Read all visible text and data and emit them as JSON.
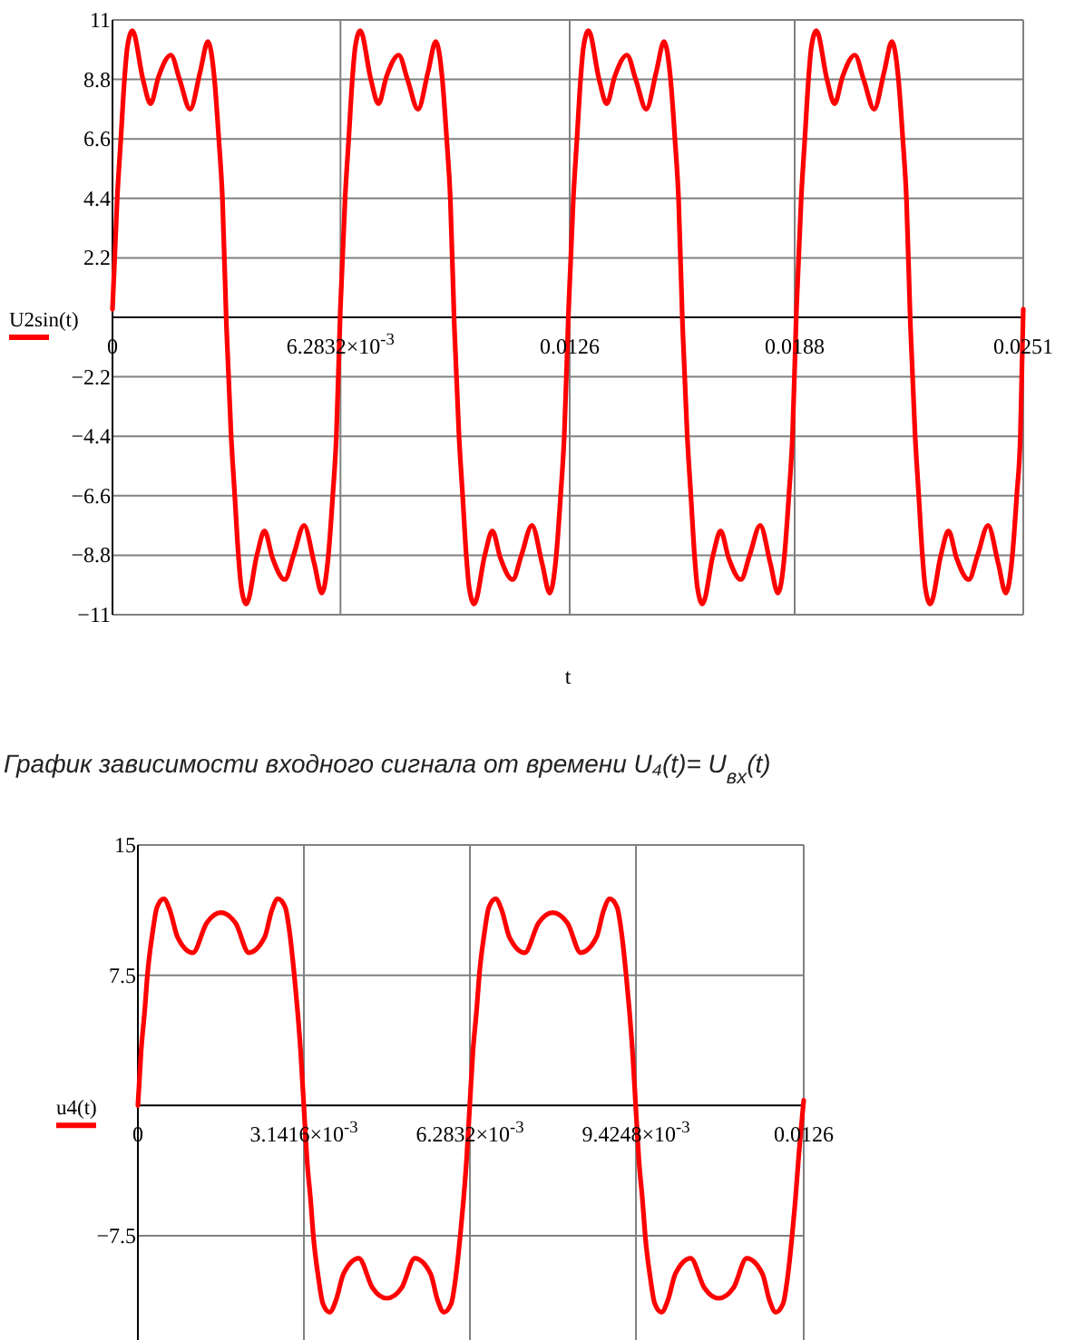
{
  "chart_data": [
    {
      "type": "line",
      "xlabel": "t",
      "grid": true,
      "legend": "left",
      "line_style": "solid",
      "xlim": [
        0,
        0.0251
      ],
      "ylim": [
        -11,
        11
      ],
      "xticks": [
        0,
        {
          "value": 0.0062832,
          "label": "6.2832×10$^{-3}$"
        },
        0.0126,
        0.0188,
        0.0251
      ],
      "yticks": [
        11,
        8.8,
        6.6,
        4.4,
        2.2,
        -2.2,
        -4.4,
        -6.6,
        -8.8,
        -11
      ],
      "x": [
        0,
        0.00013,
        0.00023,
        0.00033,
        0.00041,
        0.00055,
        0.00084,
        0.00105,
        0.00127,
        0.00161,
        0.00185,
        0.00214,
        0.00242,
        0.00263,
        0.00281,
        0.00293,
        0.00303,
        0.00314,
        0.00327,
        0.00337,
        0.00347,
        0.00355,
        0.00369,
        0.00398,
        0.00419,
        0.00441,
        0.00475,
        0.00499,
        0.00528,
        0.00556,
        0.00577,
        0.00595,
        0.00607,
        0.00617,
        0.00628,
        0.00641,
        0.00651,
        0.00661,
        0.00669,
        0.00683,
        0.00712,
        0.00733,
        0.00755,
        0.00789,
        0.00813,
        0.00842,
        0.0087,
        0.00891,
        0.00909,
        0.00921,
        0.00931,
        0.00942,
        0.00955,
        0.00965,
        0.00975,
        0.00983,
        0.00997,
        0.01026,
        0.01047,
        0.01069,
        0.01103,
        0.01127,
        0.01156,
        0.01184,
        0.01205,
        0.01223,
        0.01235,
        0.01245,
        0.01257,
        0.0127,
        0.0128,
        0.0129,
        0.01298,
        0.01312,
        0.01341,
        0.01362,
        0.01384,
        0.01418,
        0.01442,
        0.01471,
        0.01499,
        0.0152,
        0.01538,
        0.0155,
        0.0156,
        0.01571,
        0.01584,
        0.01594,
        0.01604,
        0.01612,
        0.01626,
        0.01655,
        0.01676,
        0.01698,
        0.01732,
        0.01756,
        0.01785,
        0.01813,
        0.01834,
        0.01852,
        0.01864,
        0.01874,
        0.01885,
        0.01898,
        0.01908,
        0.01918,
        0.01926,
        0.0194,
        0.01969,
        0.0199,
        0.02012,
        0.02046,
        0.0207,
        0.02099,
        0.02127,
        0.02148,
        0.02166,
        0.02178,
        0.02188,
        0.02199,
        0.02212,
        0.02222,
        0.02232,
        0.0224,
        0.02254,
        0.02283,
        0.02304,
        0.02326,
        0.0236,
        0.02384,
        0.02413,
        0.02441,
        0.02462,
        0.0248,
        0.02492,
        0.02502,
        0.0251
      ],
      "series": [
        {
          "name": "U2sin(t)",
          "color": "#ff0000",
          "values": [
            0.3,
            4.4,
            6.6,
            8.8,
            10,
            10.6,
            8.8,
            7.9,
            8.9,
            9.7,
            8.8,
            7.7,
            9.1,
            10.2,
            8.8,
            6.6,
            4.4,
            -0.3,
            -4.4,
            -6.6,
            -8.8,
            -10,
            -10.6,
            -8.8,
            -7.9,
            -8.9,
            -9.7,
            -8.8,
            -7.7,
            -9.1,
            -10.2,
            -8.8,
            -6.6,
            -4.4,
            0.3,
            4.4,
            6.6,
            8.8,
            10,
            10.6,
            8.8,
            7.9,
            8.9,
            9.7,
            8.8,
            7.7,
            9.1,
            10.2,
            8.8,
            6.6,
            4.4,
            -0.3,
            -4.4,
            -6.6,
            -8.8,
            -10,
            -10.6,
            -8.8,
            -7.9,
            -8.9,
            -9.7,
            -8.8,
            -7.7,
            -9.1,
            -10.2,
            -8.8,
            -6.6,
            -4.4,
            0.3,
            4.4,
            6.6,
            8.8,
            10,
            10.6,
            8.8,
            7.9,
            8.9,
            9.7,
            8.8,
            7.7,
            9.1,
            10.2,
            8.8,
            6.6,
            4.4,
            -0.3,
            -4.4,
            -6.6,
            -8.8,
            -10,
            -10.6,
            -8.8,
            -7.9,
            -8.9,
            -9.7,
            -8.8,
            -7.7,
            -9.1,
            -10.2,
            -8.8,
            -6.6,
            -4.4,
            0.3,
            4.4,
            6.6,
            8.8,
            10,
            10.6,
            8.8,
            7.9,
            8.9,
            9.7,
            8.8,
            7.7,
            9.1,
            10.2,
            8.8,
            6.6,
            4.4,
            -0.3,
            -4.4,
            -6.6,
            -8.8,
            -10,
            -10.6,
            -8.8,
            -7.9,
            -8.9,
            -9.7,
            -8.8,
            -7.7,
            -9.1,
            -10.2,
            -8.8,
            -6.6,
            -4.4,
            0.3
          ]
        }
      ]
    },
    {
      "type": "line",
      "title": "График зависимости входного сигнала от времени U₄(t)= U$_{вх}$(t)",
      "grid": true,
      "legend": "left",
      "line_style": "solid",
      "xlim": [
        0,
        0.0126
      ],
      "ylim": [
        -13.5,
        15
      ],
      "xticks": [
        0,
        {
          "value": 0.0031416,
          "label": "3.1416×10$^{-3}$"
        },
        {
          "value": 0.0062832,
          "label": "6.2832×10$^{-3}$"
        },
        {
          "value": 0.0094248,
          "label": "9.4248×10$^{-3}$"
        },
        0.0126
      ],
      "yticks": [
        15,
        7.5,
        -7.5
      ],
      "x": [
        0,
        6e-05,
        0.00013,
        0.00018,
        0.00028,
        0.00036,
        0.00049,
        0.00061,
        0.00075,
        0.00104,
        0.0013,
        0.00157,
        0.00185,
        0.0021,
        0.0024,
        0.00253,
        0.00265,
        0.00279,
        0.00287,
        0.00296,
        0.00302,
        0.00308,
        0.00314,
        0.0032,
        0.00327,
        0.00332,
        0.00342,
        0.0035,
        0.00363,
        0.00375,
        0.00389,
        0.00418,
        0.00444,
        0.00471,
        0.00499,
        0.00524,
        0.00554,
        0.00567,
        0.00579,
        0.00593,
        0.00601,
        0.0061,
        0.00616,
        0.00622,
        0.00628,
        0.00634,
        0.00641,
        0.00646,
        0.00656,
        0.00664,
        0.00677,
        0.00689,
        0.00703,
        0.00732,
        0.00758,
        0.00785,
        0.00813,
        0.00838,
        0.00868,
        0.00881,
        0.00893,
        0.00907,
        0.00915,
        0.00924,
        0.0093,
        0.00936,
        0.00942,
        0.00948,
        0.00955,
        0.0096,
        0.0097,
        0.00978,
        0.00991,
        0.01003,
        0.01017,
        0.01046,
        0.01072,
        0.01099,
        0.01127,
        0.01152,
        0.01182,
        0.01195,
        0.01207,
        0.01221,
        0.01229,
        0.01238,
        0.01244,
        0.0125,
        0.0126
      ],
      "series": [
        {
          "name": "u4(t)",
          "color": "#ff0000",
          "values": [
            0,
            3.1,
            5.5,
            7.5,
            10,
            11.4,
            11.9,
            11.2,
            9.7,
            8.8,
            10.5,
            11.1,
            10.5,
            8.8,
            9.7,
            11.2,
            11.9,
            11.4,
            10,
            7.5,
            5.5,
            3.1,
            0,
            -3.1,
            -5.5,
            -7.5,
            -10,
            -11.4,
            -11.9,
            -11.2,
            -9.7,
            -8.8,
            -10.5,
            -11.1,
            -10.5,
            -8.8,
            -9.7,
            -11.2,
            -11.9,
            -11.4,
            -10,
            -7.5,
            -5.5,
            -3.1,
            0,
            3.1,
            5.5,
            7.5,
            10,
            11.4,
            11.9,
            11.2,
            9.7,
            8.8,
            10.5,
            11.1,
            10.5,
            8.8,
            9.7,
            11.2,
            11.9,
            11.4,
            10,
            7.5,
            5.5,
            3.1,
            0,
            -3.1,
            -5.5,
            -7.5,
            -10,
            -11.4,
            -11.9,
            -11.2,
            -9.7,
            -8.8,
            -10.5,
            -11.1,
            -10.5,
            -8.8,
            -9.7,
            -11.2,
            -11.9,
            -11.4,
            -10,
            -7.5,
            -5.5,
            -3.1,
            0.3
          ]
        }
      ]
    }
  ]
}
